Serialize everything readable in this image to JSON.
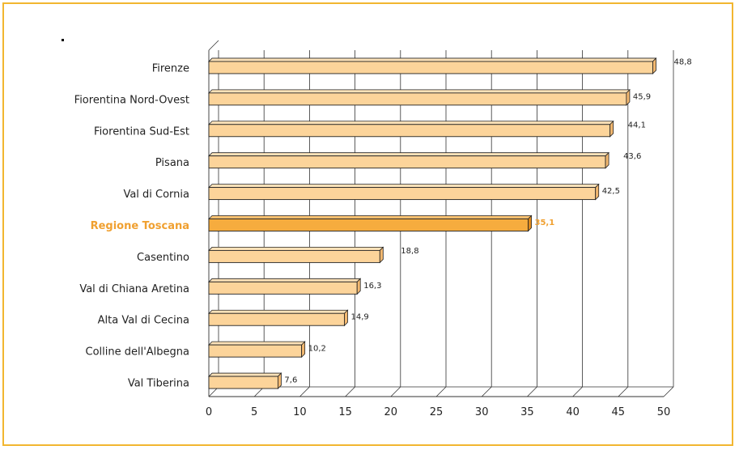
{
  "chart_data": {
    "type": "bar",
    "orientation": "horizontal",
    "categories": [
      "Firenze",
      "Fiorentina Nord-Ovest",
      "Fiorentina Sud-Est",
      "Pisana",
      "Val di Cornia",
      "Regione Toscana",
      "Casentino",
      "Val di Chiana Aretina",
      "Alta Val di Cecina",
      "Colline dell'Albegna",
      "Val Tiberina"
    ],
    "values": [
      48.8,
      45.9,
      44.1,
      43.6,
      42.5,
      35.1,
      18.8,
      16.3,
      14.9,
      10.2,
      7.6
    ],
    "value_labels": [
      "48,8",
      "45,9",
      "44,1",
      "43,6",
      "42,5",
      "35,1",
      "18,8",
      "16,3",
      "14,9",
      "10,2",
      "7,6"
    ],
    "highlight_index": 5,
    "xlim": [
      0,
      50
    ],
    "x_ticks": [
      "0",
      "5",
      "10",
      "15",
      "20",
      "25",
      "30",
      "35",
      "40",
      "45",
      "50"
    ],
    "grid": "vertical",
    "colors": {
      "bar": "#fcd49a",
      "bar_highlight": "#f6ac3e",
      "highlight_text": "#f0a030",
      "frame": "#f2b630"
    }
  }
}
